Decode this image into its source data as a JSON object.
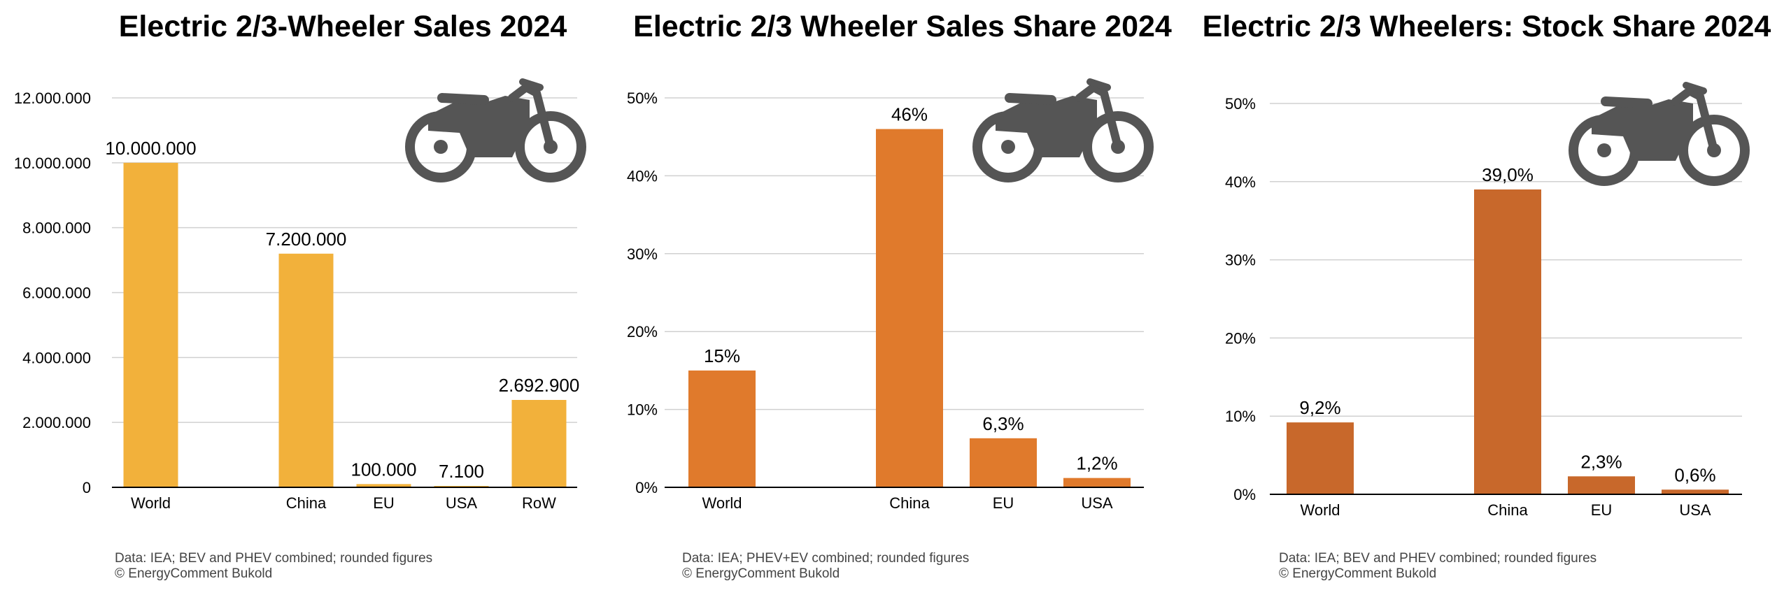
{
  "colors": {
    "panel1": "#F2B13B",
    "panel2": "#E07A2C",
    "panel3": "#C8682B",
    "icon": "#555555"
  },
  "chart_data": [
    {
      "type": "bar",
      "title": "Electric 2/3-Wheeler Sales 2024",
      "categories": [
        "World",
        "",
        "China",
        "EU",
        "USA",
        "RoW"
      ],
      "values": [
        10000000,
        null,
        7200000,
        100000,
        7100,
        2692900
      ],
      "value_labels": [
        "10.000.000",
        "",
        "7.200.000",
        "100.000",
        "7.100",
        "2.692.900"
      ],
      "ylim": [
        0,
        12000000
      ],
      "yticks": [
        0,
        2000000,
        4000000,
        6000000,
        8000000,
        10000000,
        12000000
      ],
      "ytick_labels": [
        "0",
        "2.000.000",
        "4.000.000",
        "6.000.000",
        "8.000.000",
        "10.000.000",
        "12.000.000"
      ],
      "grid": true,
      "icon": "motorcycle-icon",
      "note_lines": [
        "Data: IEA; BEV and PHEV combined; rounded figures",
        "© EnergyComment Bukold"
      ]
    },
    {
      "type": "bar",
      "title": "Electric 2/3 Wheeler Sales Share 2024",
      "categories": [
        "World",
        "",
        "China",
        "EU",
        "USA"
      ],
      "values": [
        15,
        null,
        46,
        6.3,
        1.2
      ],
      "value_labels": [
        "15%",
        "",
        "46%",
        "6,3%",
        "1,2%"
      ],
      "ylim": [
        0,
        50
      ],
      "yticks": [
        0,
        10,
        20,
        30,
        40,
        50
      ],
      "ytick_labels": [
        "0%",
        "10%",
        "20%",
        "30%",
        "40%",
        "50%"
      ],
      "grid": true,
      "icon": "motorcycle-icon",
      "note_lines": [
        "Data: IEA; PHEV+EV combined; rounded figures",
        "© EnergyComment Bukold"
      ]
    },
    {
      "type": "bar",
      "title": "Electric 2/3 Wheelers: Stock Share 2024",
      "categories": [
        "World",
        "",
        "China",
        "EU",
        "USA"
      ],
      "values": [
        9.2,
        null,
        39.0,
        2.3,
        0.6
      ],
      "value_labels": [
        "9,2%",
        "",
        "39,0%",
        "2,3%",
        "0,6%"
      ],
      "ylim": [
        0,
        50
      ],
      "yticks": [
        0,
        10,
        20,
        30,
        40,
        50
      ],
      "ytick_labels": [
        "0%",
        "10%",
        "20%",
        "30%",
        "40%",
        "50%"
      ],
      "grid": true,
      "icon": "motorcycle-icon",
      "note_lines": [
        "Data: IEA; BEV and PHEV combined; rounded figures",
        "© EnergyComment Bukold"
      ]
    }
  ]
}
